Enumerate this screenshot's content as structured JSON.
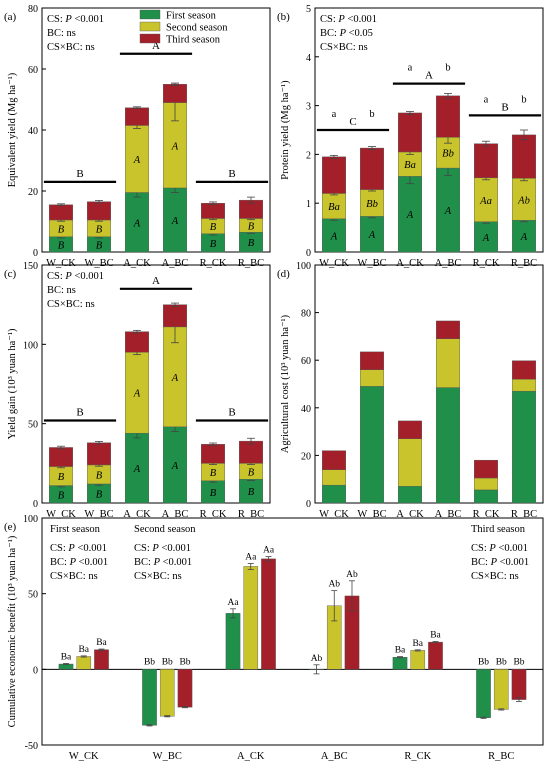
{
  "colors": {
    "first": "#1f8f4a",
    "second": "#c9c42b",
    "third": "#a3202a"
  },
  "legend": [
    "First season",
    "Second season",
    "Third season"
  ],
  "chart_data": [
    {
      "panel": "(a)",
      "type": "bar",
      "stacked": true,
      "ylabel": "Equivalent yield (Mg ha⁻¹)",
      "ylim": [
        0,
        80
      ],
      "yticks": [
        0,
        20,
        40,
        60,
        80
      ],
      "categories": [
        "W_CK",
        "W_BC",
        "A_CK",
        "A_BC",
        "R_CK",
        "R_BC"
      ],
      "series": [
        {
          "name": "First season",
          "values": [
            5,
            5,
            19.5,
            21,
            6,
            6.5
          ],
          "errors": [
            0.4,
            0.4,
            1.5,
            1.5,
            0.4,
            0.4
          ],
          "labels": [
            "B",
            "B",
            "A",
            "A",
            "B",
            "B"
          ]
        },
        {
          "name": "Second season",
          "values": [
            5.5,
            5.5,
            22,
            28,
            5,
            4.5
          ],
          "errors": [
            0.4,
            0.4,
            1,
            6,
            0.4,
            0.4
          ],
          "labels": [
            "B",
            "B",
            "A",
            "A",
            "B",
            "B"
          ]
        },
        {
          "name": "Third season",
          "values": [
            5,
            6,
            5.8,
            6,
            5,
            6
          ],
          "errors": [
            0.3,
            0.4,
            0.3,
            0.4,
            0.4,
            1
          ],
          "labels": [
            "",
            "",
            "",
            "",
            "",
            ""
          ]
        }
      ],
      "annotations": [
        "CS: P <0.001",
        "BC: ns",
        "CS×BC: ns"
      ],
      "groups": [
        {
          "label": "B",
          "y": 23,
          "from": 0,
          "to": 1
        },
        {
          "label": "A",
          "y": 65,
          "from": 2,
          "to": 3
        },
        {
          "label": "B",
          "y": 23,
          "from": 4,
          "to": 5
        }
      ],
      "toplabels": []
    },
    {
      "panel": "(b)",
      "type": "bar",
      "stacked": true,
      "ylabel": "Protein yield (Mg ha⁻¹)",
      "ylim": [
        0,
        5
      ],
      "yticks": [
        0,
        1,
        2,
        3,
        4,
        5
      ],
      "categories": [
        "W_CK",
        "W_BC",
        "A_CK",
        "A_BC",
        "R_CK",
        "R_BC"
      ],
      "series": [
        {
          "name": "First season",
          "values": [
            0.68,
            0.73,
            1.55,
            1.72,
            0.62,
            0.65
          ],
          "errors": [
            0.03,
            0.03,
            0.15,
            0.15,
            0.03,
            0.03
          ],
          "labels": [
            "A",
            "A",
            "A",
            "A",
            "A",
            "A"
          ]
        },
        {
          "name": "Second season",
          "values": [
            0.52,
            0.55,
            0.5,
            0.63,
            0.9,
            0.86
          ],
          "errors": [
            0.03,
            0.03,
            0.05,
            0.12,
            0.04,
            0.05
          ],
          "labels": [
            "Ba",
            "Bb",
            "Ba",
            "Bb",
            "Aa",
            "Ab"
          ]
        },
        {
          "name": "Third season",
          "values": [
            0.75,
            0.85,
            0.8,
            0.85,
            0.7,
            0.89
          ],
          "errors": [
            0.03,
            0.03,
            0.03,
            0.05,
            0.05,
            0.1
          ],
          "labels": [
            "",
            "",
            "",
            "",
            "",
            ""
          ]
        }
      ],
      "annotations": [
        "CS: P <0.001",
        "BC: P <0.05",
        "CS×BC: ns"
      ],
      "groups": [
        {
          "label": "C",
          "y": 2.5,
          "from": 0,
          "to": 1
        },
        {
          "label": "A",
          "y": 3.45,
          "from": 2,
          "to": 3
        },
        {
          "label": "B",
          "y": 2.8,
          "from": 4,
          "to": 5
        }
      ],
      "toplabels": [
        "a",
        "b",
        "a",
        "b",
        "a",
        "b"
      ]
    },
    {
      "panel": "(c)",
      "type": "bar",
      "stacked": true,
      "ylabel": "Yield gain (10³ yuan ha⁻¹)",
      "ylim": [
        0,
        150
      ],
      "yticks": [
        0,
        50,
        100,
        150
      ],
      "categories": [
        "W_CK",
        "W_BC",
        "A_CK",
        "A_BC",
        "R_CK",
        "R_BC"
      ],
      "series": [
        {
          "name": "First season",
          "values": [
            11,
            12,
            44,
            48,
            14,
            15
          ],
          "errors": [
            0.8,
            0.8,
            3,
            3,
            0.8,
            0.8
          ],
          "labels": [
            "B",
            "B",
            "A",
            "A",
            "B",
            "B"
          ]
        },
        {
          "name": "Second season",
          "values": [
            12,
            12,
            51,
            63,
            11,
            10
          ],
          "errors": [
            0.8,
            0.8,
            1.5,
            10,
            0.8,
            0.8
          ],
          "labels": [
            "B",
            "B",
            "A",
            "A",
            "B",
            "B"
          ]
        },
        {
          "name": "Third season",
          "values": [
            12,
            14,
            13,
            14,
            12,
            14
          ],
          "errors": [
            0.8,
            0.8,
            0.8,
            1,
            0.8,
            1.8
          ],
          "labels": [
            "",
            "",
            "",
            "",
            "",
            ""
          ]
        }
      ],
      "annotations": [
        "CS: P <0.001",
        "BC: ns",
        "CS×BC: ns"
      ],
      "groups": [
        {
          "label": "B",
          "y": 52,
          "from": 0,
          "to": 1
        },
        {
          "label": "A",
          "y": 135,
          "from": 2,
          "to": 3
        },
        {
          "label": "B",
          "y": 52,
          "from": 4,
          "to": 5
        }
      ],
      "toplabels": []
    },
    {
      "panel": "(d)",
      "type": "bar",
      "stacked": true,
      "ylabel": "Agricultural cost (10³ yuan ha⁻¹)",
      "ylim": [
        0,
        100
      ],
      "yticks": [
        0,
        20,
        40,
        60,
        80,
        100
      ],
      "categories": [
        "W_CK",
        "W_BC",
        "A_CK",
        "A_BC",
        "R_CK",
        "R_BC"
      ],
      "series": [
        {
          "name": "First season",
          "values": [
            7.5,
            49,
            7,
            48.5,
            5.5,
            47
          ],
          "errors": [],
          "labels": []
        },
        {
          "name": "Second season",
          "values": [
            6.5,
            7,
            20,
            20.5,
            5,
            5
          ],
          "errors": [],
          "labels": []
        },
        {
          "name": "Third season",
          "values": [
            8,
            7.5,
            7.5,
            7.5,
            7.5,
            7.8
          ],
          "errors": [],
          "labels": []
        }
      ],
      "annotations": [],
      "groups": [],
      "toplabels": []
    },
    {
      "panel": "(e)",
      "type": "bar",
      "stacked": false,
      "ylabel": "Cumulative economic benefit (10³ yuan ha⁻¹)",
      "ylim": [
        -50,
        100
      ],
      "yticks": [
        -50,
        0,
        50,
        100
      ],
      "categories": [
        "W_CK",
        "W_BC",
        "A_CK",
        "A_BC",
        "R_CK",
        "R_BC"
      ],
      "series": [
        {
          "name": "First season",
          "values": [
            3.5,
            -37,
            37,
            0,
            8,
            -32
          ],
          "errors": [
            0.4,
            0.4,
            3,
            3,
            0.4,
            0.4
          ],
          "labels": [
            "Ba",
            "Bb",
            "Aa",
            "Ab",
            "Ba",
            "Bb"
          ]
        },
        {
          "name": "Second season",
          "values": [
            8.5,
            -31,
            68,
            42,
            12.5,
            -26.5
          ],
          "errors": [
            0.4,
            0.4,
            2,
            10,
            0.4,
            0.4
          ],
          "labels": [
            "Ba",
            "Bb",
            "Aa",
            "Ab",
            "Ba",
            "Bb"
          ]
        },
        {
          "name": "Third season",
          "values": [
            13,
            -25,
            73,
            48.5,
            18,
            -20
          ],
          "errors": [
            0.4,
            0.4,
            1.5,
            10,
            0.4,
            1.2
          ],
          "labels": [
            "Ba",
            "Bb",
            "Aa",
            "Ab",
            "Ba",
            "Bb"
          ]
        }
      ],
      "seasonnotes": [
        {
          "title": "First season",
          "lines": [
            "CS: P <0.001",
            "BC: P <0.001",
            "CS×BC: ns"
          ]
        },
        {
          "title": "Second season",
          "lines": [
            "CS: P <0.001",
            "BC: P <0.001",
            "CS×BC: ns"
          ]
        },
        {
          "title": "Third season",
          "lines": [
            "CS: P <0.001",
            "BC: P <0.001",
            "CS×BC: ns"
          ]
        }
      ]
    }
  ]
}
